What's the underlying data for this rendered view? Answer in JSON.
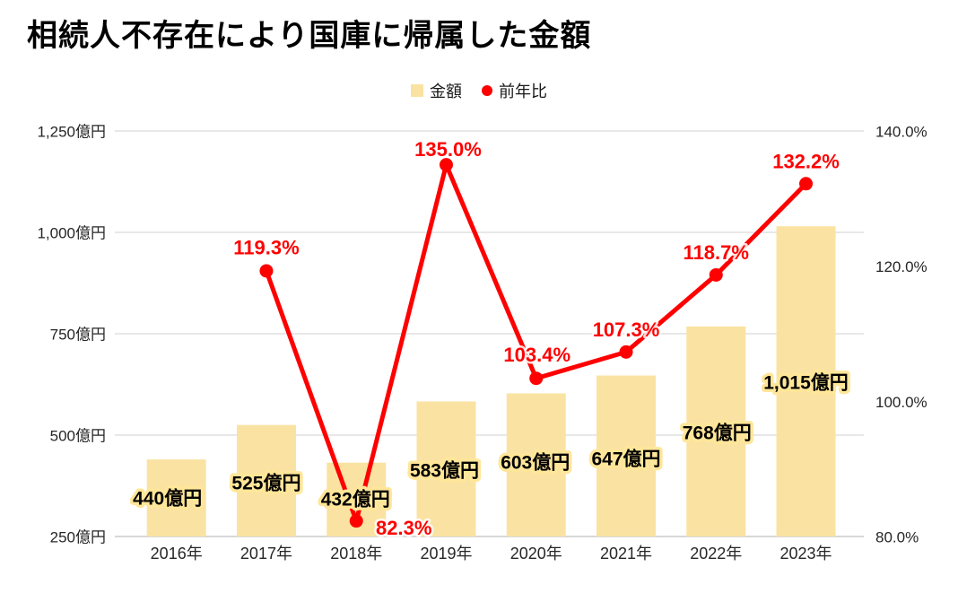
{
  "header": {
    "title": "相続人不存在により国庫に帰属した金額"
  },
  "legend": {
    "items": [
      {
        "label": "金額",
        "marker": "square"
      },
      {
        "label": "前年比",
        "marker": "circle"
      }
    ]
  },
  "colors": {
    "bar": "#FAE3A2",
    "bar_label_glow": "#FFE699",
    "line": "#FF0000",
    "gridline": "#D9D9D9",
    "axis_line": "#BFBFBF",
    "tick_text": "#262626",
    "title_text": "#000000"
  },
  "chart_data": {
    "type": "bar+line combo",
    "title": "相続人不存在により国庫に帰属した金額",
    "categories": [
      "2016年",
      "2017年",
      "2018年",
      "2019年",
      "2020年",
      "2021年",
      "2022年",
      "2023年"
    ],
    "series": [
      {
        "name": "金額",
        "type": "bar",
        "axis": "left",
        "values": [
          440,
          525,
          432,
          583,
          603,
          647,
          768,
          1015
        ],
        "labels": [
          "440億円",
          "525億円",
          "432億円",
          "583億円",
          "603億円",
          "647億円",
          "768億円",
          "1,015億円"
        ]
      },
      {
        "name": "前年比",
        "type": "line",
        "axis": "right",
        "values": [
          null,
          119.3,
          82.3,
          135.0,
          103.4,
          107.3,
          118.7,
          132.2
        ],
        "labels": [
          null,
          "119.3%",
          "82.3%",
          "135.0%",
          "103.4%",
          "107.3%",
          "118.7%",
          "132.2%"
        ]
      }
    ],
    "left_axis": {
      "unit": "億円",
      "min": 250,
      "max": 1250,
      "step": 250,
      "tick_labels": [
        "250億円",
        "500億円",
        "750億円",
        "1,000億円",
        "1,250億円"
      ]
    },
    "right_axis": {
      "unit": "%",
      "min": 80,
      "max": 140,
      "step": 20,
      "tick_labels": [
        "80.0%",
        "100.0%",
        "120.0%",
        "140.0%"
      ]
    },
    "grid": true,
    "legend_position": "top-center"
  }
}
